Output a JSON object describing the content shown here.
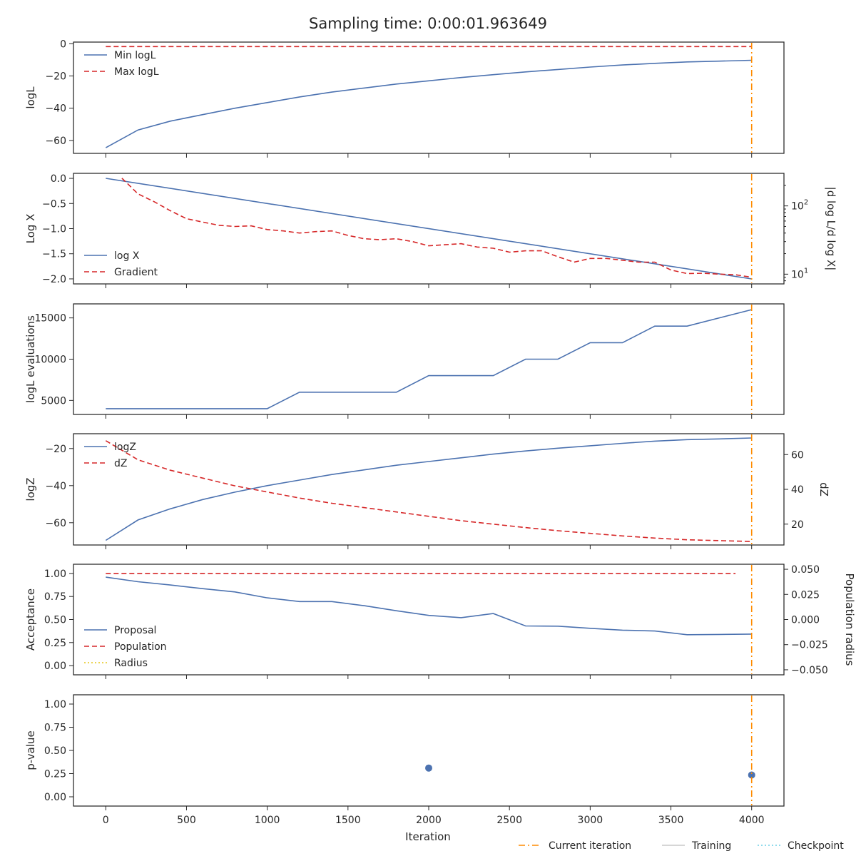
{
  "figure": {
    "title": "Sampling time: 0:00:01.963649",
    "xlabel": "Iteration",
    "xlim": [
      -200,
      4200
    ],
    "xticks": [
      0,
      500,
      1000,
      1500,
      2000,
      2500,
      3000,
      3500,
      4000
    ],
    "current_iteration": 4000,
    "bottom_legend": [
      {
        "label": "Current iteration",
        "color": "#ff8c00",
        "style": "dashdot"
      },
      {
        "label": "Training",
        "color": "#c8c8c8",
        "style": "solid"
      },
      {
        "label": "Checkpoint",
        "color": "#6ccfe6",
        "style": "dotted"
      }
    ]
  },
  "chart_data": [
    {
      "type": "line",
      "ylabel": "logL",
      "ylim": [
        -68,
        1
      ],
      "yticks": [
        0,
        -20,
        -40,
        -60
      ],
      "legend_position": "top-left",
      "series": [
        {
          "name": "Min logL",
          "color": "#4c72b0",
          "style": "solid",
          "x": [
            0,
            200,
            400,
            600,
            800,
            1000,
            1200,
            1400,
            1600,
            1800,
            2000,
            2200,
            2400,
            2600,
            2800,
            3000,
            3200,
            3400,
            3600,
            3800,
            4000
          ],
          "y": [
            -64.5,
            -53.5,
            -48,
            -44,
            -40,
            -36.5,
            -33,
            -30,
            -27.5,
            -25,
            -23,
            -21,
            -19.2,
            -17.5,
            -16,
            -14.5,
            -13.2,
            -12.2,
            -11.3,
            -10.8,
            -10.3
          ]
        },
        {
          "name": "Max logL",
          "color": "#d62728",
          "style": "dashed",
          "x": [
            0,
            4000
          ],
          "y": [
            -1.8,
            -1.8
          ]
        }
      ]
    },
    {
      "type": "line",
      "ylabel": "Log X",
      "y2label": "|d log L/d log X|",
      "ylim": [
        -2.1,
        0.1
      ],
      "yticks": [
        0.0,
        -0.5,
        -1.0,
        -1.5,
        -2.0
      ],
      "y2scale": "log",
      "y2lim": [
        7.2,
        300
      ],
      "y2ticks": [
        10,
        100
      ],
      "legend_position": "lower-left",
      "series": [
        {
          "name": "log X",
          "color": "#4c72b0",
          "style": "solid",
          "axis": "left",
          "x": [
            0,
            4000
          ],
          "y": [
            0.0,
            -2.0
          ]
        },
        {
          "name": "Gradient",
          "color": "#d62728",
          "style": "dashed",
          "axis": "right",
          "x": [
            100,
            200,
            300,
            400,
            500,
            600,
            700,
            800,
            900,
            1000,
            1100,
            1200,
            1300,
            1400,
            1500,
            1600,
            1700,
            1800,
            1900,
            2000,
            2100,
            2200,
            2300,
            2400,
            2500,
            2600,
            2700,
            2800,
            2900,
            3000,
            3100,
            3200,
            3300,
            3400,
            3500,
            3600,
            3700,
            3800,
            3900,
            4000
          ],
          "y": [
            255,
            150,
            115,
            85,
            65,
            58,
            52,
            50,
            51,
            45,
            43,
            40,
            42,
            43,
            37,
            33,
            32,
            33,
            30,
            26,
            27,
            28,
            25,
            24,
            21,
            22,
            22,
            18,
            15,
            17,
            17,
            16,
            15,
            15,
            11.5,
            10.2,
            10.3,
            10,
            9.8,
            9
          ]
        }
      ]
    },
    {
      "type": "line",
      "ylabel": "logL evaluations",
      "ylim": [
        3300,
        16700
      ],
      "yticks": [
        5000,
        10000,
        15000
      ],
      "series": [
        {
          "name": "",
          "color": "#4c72b0",
          "style": "solid",
          "x": [
            0,
            1000,
            1200,
            1800,
            2000,
            2400,
            2600,
            2800,
            3000,
            3200,
            3400,
            3600,
            4000
          ],
          "y": [
            4000,
            4000,
            6000,
            6000,
            8000,
            8000,
            10000,
            10000,
            12000,
            12000,
            14000,
            14000,
            16000
          ]
        }
      ]
    },
    {
      "type": "line",
      "ylabel": "logZ",
      "y2label": "dZ",
      "ylim": [
        -72,
        -12
      ],
      "yticks": [
        -20,
        -40,
        -60
      ],
      "y2lim": [
        8,
        72
      ],
      "y2ticks": [
        20,
        40,
        60
      ],
      "legend_position": "top-left",
      "series": [
        {
          "name": "logZ",
          "color": "#4c72b0",
          "style": "solid",
          "axis": "left",
          "x": [
            0,
            200,
            400,
            600,
            800,
            1000,
            1200,
            1400,
            1600,
            1800,
            2000,
            2200,
            2400,
            2600,
            2800,
            3000,
            3200,
            3400,
            3600,
            3800,
            4000
          ],
          "y": [
            -69.5,
            -58.5,
            -52.5,
            -47.5,
            -43.5,
            -40,
            -37,
            -34,
            -31.5,
            -29,
            -27,
            -25,
            -23,
            -21.3,
            -19.8,
            -18.5,
            -17.2,
            -16,
            -15.2,
            -14.8,
            -14.3
          ]
        },
        {
          "name": "dZ",
          "color": "#d62728",
          "style": "dashed",
          "axis": "right",
          "x": [
            0,
            200,
            400,
            600,
            800,
            1000,
            1200,
            1400,
            1600,
            1800,
            2000,
            2200,
            2400,
            2600,
            2800,
            3000,
            3200,
            3400,
            3600,
            3800,
            4000
          ],
          "y": [
            68,
            57,
            51,
            46.5,
            42,
            38.5,
            35,
            32,
            29.5,
            27,
            24.5,
            22,
            20,
            18,
            16.2,
            14.7,
            13.2,
            12,
            11,
            10.5,
            10
          ]
        }
      ]
    },
    {
      "type": "line",
      "ylabel": "Acceptance",
      "y2label": "Population radius",
      "ylim": [
        -0.1,
        1.1
      ],
      "yticks": [
        1.0,
        0.75,
        0.5,
        0.25,
        0.0
      ],
      "y2lim": [
        -0.055,
        0.055
      ],
      "y2ticks": [
        0.05,
        0.025,
        0.0,
        -0.025,
        -0.05
      ],
      "legend_position": "lower-left",
      "series": [
        {
          "name": "Proposal",
          "color": "#4c72b0",
          "style": "solid",
          "axis": "left",
          "x": [
            0,
            200,
            400,
            600,
            800,
            1000,
            1200,
            1400,
            1600,
            1800,
            2000,
            2200,
            2400,
            2600,
            2800,
            3000,
            3200,
            3400,
            3600,
            3800,
            4000
          ],
          "y": [
            0.96,
            0.91,
            0.875,
            0.835,
            0.8,
            0.735,
            0.695,
            0.695,
            0.65,
            0.595,
            0.545,
            0.52,
            0.565,
            0.43,
            0.428,
            0.405,
            0.385,
            0.375,
            0.335,
            0.338,
            0.342
          ]
        },
        {
          "name": "Population",
          "color": "#d62728",
          "style": "dashed",
          "axis": "left",
          "x": [
            0,
            3900
          ],
          "y": [
            1.0,
            1.0
          ]
        },
        {
          "name": "Radius",
          "color": "#e6c619",
          "style": "dotted",
          "axis": "right",
          "x": [],
          "y": []
        }
      ]
    },
    {
      "type": "scatter",
      "ylabel": "p-value",
      "ylim": [
        -0.1,
        1.1
      ],
      "yticks": [
        1.0,
        0.75,
        0.5,
        0.25,
        0.0
      ],
      "series": [
        {
          "name": "",
          "color": "#4c72b0",
          "x": [
            2000,
            4000
          ],
          "y": [
            0.31,
            0.235
          ]
        }
      ]
    }
  ]
}
